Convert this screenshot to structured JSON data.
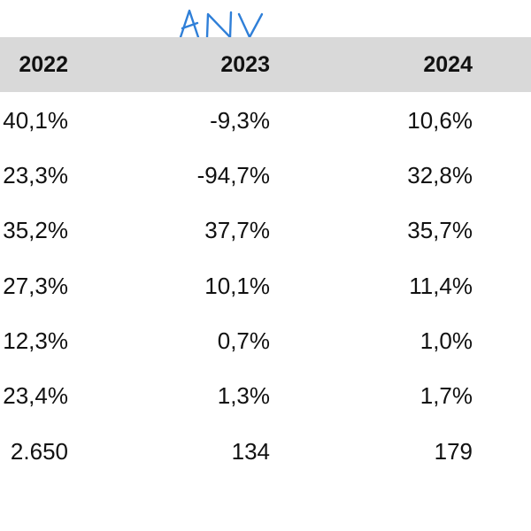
{
  "annotation": {
    "text": "ANV",
    "color": "#2f7fd8"
  },
  "table": {
    "header_bg": "#d9d9d9",
    "columns": [
      "2022",
      "2023",
      "2024"
    ],
    "rows": [
      [
        "40,1%",
        "-9,3%",
        "10,6%"
      ],
      [
        "23,3%",
        "-94,7%",
        "32,8%"
      ],
      [
        "35,2%",
        "37,7%",
        "35,7%"
      ],
      [
        "27,3%",
        "10,1%",
        "11,4%"
      ],
      [
        "12,3%",
        "0,7%",
        "1,0%"
      ],
      [
        "23,4%",
        "1,3%",
        "1,7%"
      ],
      [
        "2.650",
        "134",
        "179"
      ]
    ]
  }
}
